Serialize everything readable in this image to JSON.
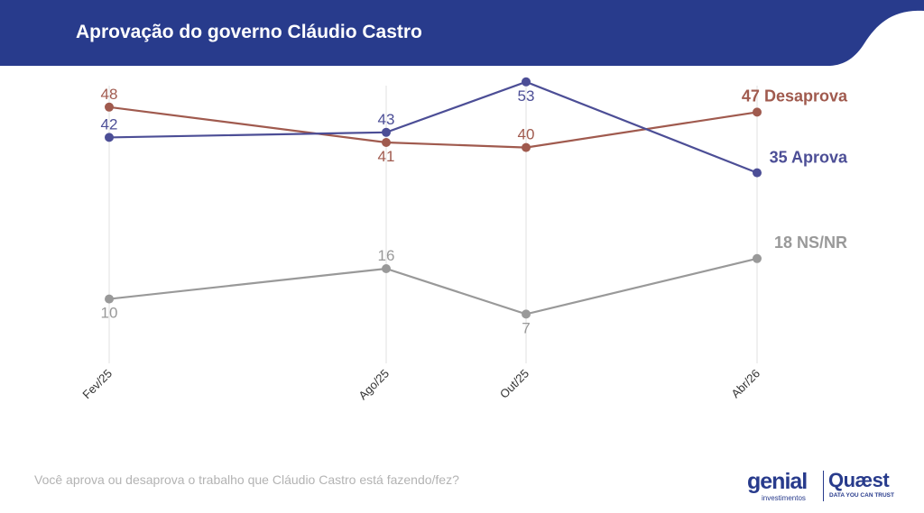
{
  "header": {
    "title": "Aprovação do governo Cláudio Castro",
    "bg_color": "#283b8c"
  },
  "chart_data": {
    "type": "line",
    "categories": [
      "Fev/25",
      "Ago/25",
      "Out/25",
      "Abr/26"
    ],
    "series": [
      {
        "name": "Desaprova",
        "values": [
          48,
          41,
          40,
          47
        ],
        "color": "#a05a4e"
      },
      {
        "name": "Aprova",
        "values": [
          42,
          43,
          53,
          35
        ],
        "color": "#4c4e96"
      },
      {
        "name": "NS/NR",
        "values": [
          10,
          16,
          7,
          18
        ],
        "color": "#999999"
      }
    ],
    "title": "Aprovação do governo Cláudio Castro",
    "xlabel": "",
    "ylabel": "",
    "grid": "vertical",
    "legend": "end-of-line labels",
    "note": "Você aprova ou desaprova o trabalho que Cláudio Castro está fazendo/fez?"
  },
  "footer": {
    "note": "Você aprova ou desaprova o trabalho que Cláudio Castro está fazendo/fez?",
    "logo_genial": "genial",
    "logo_genial_sub": "investimentos",
    "logo_quaest": "Quæst",
    "logo_quaest_sub": "DATA YOU CAN TRUST"
  }
}
